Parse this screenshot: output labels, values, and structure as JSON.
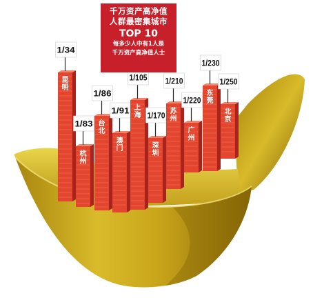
{
  "title": {
    "line1": "千万资产高净值",
    "line2": "人群最密集城市",
    "line3": "TOP 10",
    "line4": "每多少人中有1人是",
    "line5": "千万资产高净值人士"
  },
  "chart_data": {
    "type": "bar",
    "title": "千万资产高净值人群最密集城市 TOP 10",
    "subtitle": "每多少人中有1人是千万资产高净值人士",
    "categories": [
      "昆明",
      "杭州",
      "台北",
      "澳门",
      "上海",
      "深圳",
      "苏州",
      "广州",
      "东莞",
      "北京"
    ],
    "labels": [
      "1/34",
      "1/83",
      "1/86",
      "1/91",
      "1/105",
      "1/170",
      "1/210",
      "1/220",
      "1/230",
      "1/250"
    ],
    "values": [
      34,
      83,
      86,
      91,
      105,
      170,
      210,
      220,
      230,
      250
    ]
  },
  "colors": {
    "bar_front": "#e4452f",
    "bar_side": "#a8231c",
    "bar_stripe": "#f07a5e",
    "label_box": "#ffffff",
    "title_bg": "#c8202b",
    "ingot_gold": "#d4b21c",
    "ingot_dark": "#8a6a08"
  }
}
